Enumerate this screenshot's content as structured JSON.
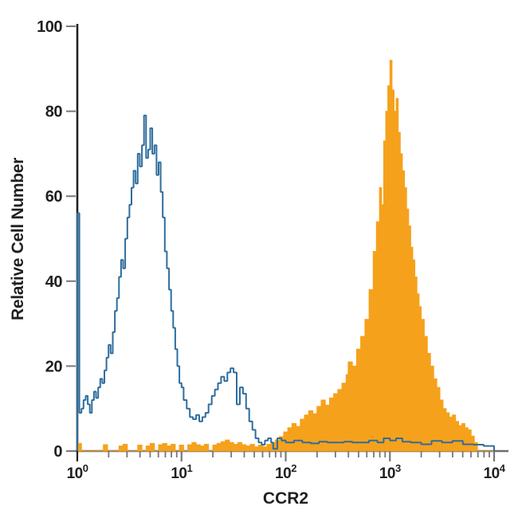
{
  "chart_data": {
    "type": "bar",
    "subtype": "flow-cytometry-overlay-histogram",
    "title": "",
    "xlabel": "CCR2",
    "ylabel": "Relative Cell Number",
    "x_axis": {
      "scale": "log10",
      "range": [
        1,
        10000
      ],
      "ticks": [
        {
          "text": "10",
          "sup": "0",
          "log": 0
        },
        {
          "text": "10",
          "sup": "1",
          "log": 1
        },
        {
          "text": "10",
          "sup": "2",
          "log": 2
        },
        {
          "text": "10",
          "sup": "3",
          "log": 3
        },
        {
          "text": "10",
          "sup": "4",
          "log": 4
        }
      ],
      "minor_tick_multiples": [
        2,
        3,
        4,
        5,
        6,
        7,
        8,
        9
      ]
    },
    "y_axis": {
      "range": [
        0,
        100
      ],
      "ticks": [
        0,
        20,
        40,
        60,
        80,
        100
      ]
    },
    "grid": false,
    "legend": false,
    "colors": {
      "blue_series": "#2E6D9E",
      "orange_series": "#F6A11C",
      "y_axis_line": "#231f20",
      "x_axis_line": "#6d6e71",
      "tick": "#77787b",
      "label": "#231f20"
    },
    "series": [
      {
        "name": "orange-filled-histogram",
        "style": "filled",
        "points_logx_y": [
          [
            0.0,
            1.8
          ],
          [
            0.04,
            0
          ],
          [
            0.1,
            0
          ],
          [
            0.16,
            0
          ],
          [
            0.22,
            0
          ],
          [
            0.25,
            1.5
          ],
          [
            0.29,
            0
          ],
          [
            0.35,
            0
          ],
          [
            0.4,
            1.2
          ],
          [
            0.44,
            1.6
          ],
          [
            0.48,
            0
          ],
          [
            0.54,
            0
          ],
          [
            0.58,
            1.4
          ],
          [
            0.62,
            0
          ],
          [
            0.66,
            1.2
          ],
          [
            0.7,
            1.8
          ],
          [
            0.74,
            0
          ],
          [
            0.78,
            1.5
          ],
          [
            0.82,
            1.8
          ],
          [
            0.86,
            1.2
          ],
          [
            0.9,
            1.6
          ],
          [
            0.94,
            0
          ],
          [
            0.98,
            1.4
          ],
          [
            1.02,
            0
          ],
          [
            1.06,
            1.5
          ],
          [
            1.1,
            2
          ],
          [
            1.14,
            1.5
          ],
          [
            1.18,
            1.2
          ],
          [
            1.22,
            1.6
          ],
          [
            1.26,
            0
          ],
          [
            1.3,
            1.4
          ],
          [
            1.34,
            1.8
          ],
          [
            1.38,
            2.2
          ],
          [
            1.42,
            2.6
          ],
          [
            1.46,
            2
          ],
          [
            1.5,
            1.6
          ],
          [
            1.54,
            2
          ],
          [
            1.58,
            1.5
          ],
          [
            1.62,
            1.2
          ],
          [
            1.66,
            1.6
          ],
          [
            1.7,
            1
          ],
          [
            1.74,
            1.4
          ],
          [
            1.78,
            1
          ],
          [
            1.82,
            1.6
          ],
          [
            1.86,
            2
          ],
          [
            1.9,
            2.6
          ],
          [
            1.94,
            3.4
          ],
          [
            1.98,
            4.5
          ],
          [
            2.02,
            5.5
          ],
          [
            2.06,
            6.5
          ],
          [
            2.1,
            5.8
          ],
          [
            2.14,
            7.5
          ],
          [
            2.18,
            8.5
          ],
          [
            2.22,
            9.5
          ],
          [
            2.26,
            8.8
          ],
          [
            2.3,
            10.5
          ],
          [
            2.34,
            12
          ],
          [
            2.38,
            10.8
          ],
          [
            2.42,
            12.5
          ],
          [
            2.46,
            13.5
          ],
          [
            2.5,
            14.5
          ],
          [
            2.54,
            16
          ],
          [
            2.58,
            18
          ],
          [
            2.6,
            21
          ],
          [
            2.64,
            20
          ],
          [
            2.68,
            24
          ],
          [
            2.72,
            27
          ],
          [
            2.76,
            31
          ],
          [
            2.8,
            38
          ],
          [
            2.84,
            47
          ],
          [
            2.87,
            54
          ],
          [
            2.9,
            62
          ],
          [
            2.92,
            58
          ],
          [
            2.94,
            73
          ],
          [
            2.96,
            80
          ],
          [
            2.98,
            86
          ],
          [
            3.0,
            92
          ],
          [
            3.02,
            85
          ],
          [
            3.04,
            80
          ],
          [
            3.06,
            83
          ],
          [
            3.08,
            75
          ],
          [
            3.1,
            70
          ],
          [
            3.12,
            66
          ],
          [
            3.14,
            62
          ],
          [
            3.16,
            57
          ],
          [
            3.18,
            53
          ],
          [
            3.2,
            48
          ],
          [
            3.22,
            45
          ],
          [
            3.24,
            41
          ],
          [
            3.26,
            37
          ],
          [
            3.28,
            34
          ],
          [
            3.3,
            31
          ],
          [
            3.33,
            27
          ],
          [
            3.36,
            23
          ],
          [
            3.39,
            20
          ],
          [
            3.42,
            17
          ],
          [
            3.45,
            15
          ],
          [
            3.48,
            12
          ],
          [
            3.51,
            10
          ],
          [
            3.54,
            9
          ],
          [
            3.57,
            8
          ],
          [
            3.6,
            8.5
          ],
          [
            3.63,
            7
          ],
          [
            3.66,
            6
          ],
          [
            3.69,
            6.5
          ],
          [
            3.72,
            5.5
          ],
          [
            3.75,
            5
          ],
          [
            3.78,
            3.5
          ],
          [
            3.81,
            2
          ],
          [
            3.84,
            0
          ],
          [
            3.9,
            0
          ],
          [
            4.0,
            0
          ]
        ]
      },
      {
        "name": "blue-open-histogram",
        "style": "open-outline",
        "points_logx_y": [
          [
            0.0,
            56
          ],
          [
            0.02,
            9
          ],
          [
            0.04,
            10
          ],
          [
            0.06,
            12
          ],
          [
            0.08,
            13
          ],
          [
            0.1,
            11
          ],
          [
            0.12,
            9
          ],
          [
            0.14,
            12
          ],
          [
            0.16,
            14
          ],
          [
            0.18,
            12.5
          ],
          [
            0.2,
            15
          ],
          [
            0.22,
            17
          ],
          [
            0.24,
            16
          ],
          [
            0.26,
            19
          ],
          [
            0.28,
            22
          ],
          [
            0.3,
            25
          ],
          [
            0.32,
            23
          ],
          [
            0.34,
            28
          ],
          [
            0.36,
            33
          ],
          [
            0.38,
            36
          ],
          [
            0.4,
            41
          ],
          [
            0.42,
            45
          ],
          [
            0.44,
            43
          ],
          [
            0.46,
            50
          ],
          [
            0.48,
            55
          ],
          [
            0.5,
            58
          ],
          [
            0.52,
            62
          ],
          [
            0.54,
            66
          ],
          [
            0.56,
            63
          ],
          [
            0.58,
            70
          ],
          [
            0.6,
            67
          ],
          [
            0.62,
            72
          ],
          [
            0.64,
            79
          ],
          [
            0.66,
            69
          ],
          [
            0.68,
            71
          ],
          [
            0.7,
            76
          ],
          [
            0.72,
            70
          ],
          [
            0.74,
            72
          ],
          [
            0.76,
            65
          ],
          [
            0.78,
            68
          ],
          [
            0.8,
            61
          ],
          [
            0.82,
            55
          ],
          [
            0.84,
            47
          ],
          [
            0.86,
            43
          ],
          [
            0.88,
            38
          ],
          [
            0.9,
            33
          ],
          [
            0.92,
            29
          ],
          [
            0.94,
            24
          ],
          [
            0.96,
            20
          ],
          [
            0.98,
            16
          ],
          [
            1.0,
            15
          ],
          [
            1.02,
            12
          ],
          [
            1.05,
            10
          ],
          [
            1.08,
            8
          ],
          [
            1.11,
            7.5
          ],
          [
            1.14,
            8.5
          ],
          [
            1.17,
            7
          ],
          [
            1.2,
            8
          ],
          [
            1.23,
            9
          ],
          [
            1.26,
            11
          ],
          [
            1.29,
            13
          ],
          [
            1.32,
            14.5
          ],
          [
            1.35,
            16
          ],
          [
            1.38,
            17.5
          ],
          [
            1.41,
            16.5
          ],
          [
            1.44,
            18.5
          ],
          [
            1.47,
            19.5
          ],
          [
            1.5,
            18.5
          ],
          [
            1.53,
            11
          ],
          [
            1.56,
            15
          ],
          [
            1.59,
            13.5
          ],
          [
            1.62,
            10
          ],
          [
            1.65,
            7
          ],
          [
            1.68,
            5
          ],
          [
            1.71,
            3
          ],
          [
            1.74,
            2
          ],
          [
            1.77,
            1.5
          ],
          [
            1.8,
            2.5
          ],
          [
            1.83,
            3
          ],
          [
            1.86,
            2
          ],
          [
            1.88,
            0.5
          ],
          [
            1.92,
            3
          ],
          [
            1.96,
            2.5
          ],
          [
            2.0,
            2
          ],
          [
            2.08,
            2.5
          ],
          [
            2.16,
            2
          ],
          [
            2.24,
            1.8
          ],
          [
            2.32,
            2.2
          ],
          [
            2.4,
            2
          ],
          [
            2.48,
            2
          ],
          [
            2.56,
            2.2
          ],
          [
            2.64,
            2
          ],
          [
            2.72,
            2
          ],
          [
            2.8,
            2.5
          ],
          [
            2.88,
            2
          ],
          [
            2.94,
            3
          ],
          [
            3.0,
            2.5
          ],
          [
            3.06,
            3
          ],
          [
            3.12,
            2.2
          ],
          [
            3.2,
            2
          ],
          [
            3.3,
            1.6
          ],
          [
            3.4,
            2.4
          ],
          [
            3.5,
            2
          ],
          [
            3.6,
            2.4
          ],
          [
            3.7,
            1.6
          ],
          [
            3.8,
            1.5
          ],
          [
            3.9,
            1.2
          ],
          [
            4.0,
            1
          ]
        ]
      }
    ]
  }
}
